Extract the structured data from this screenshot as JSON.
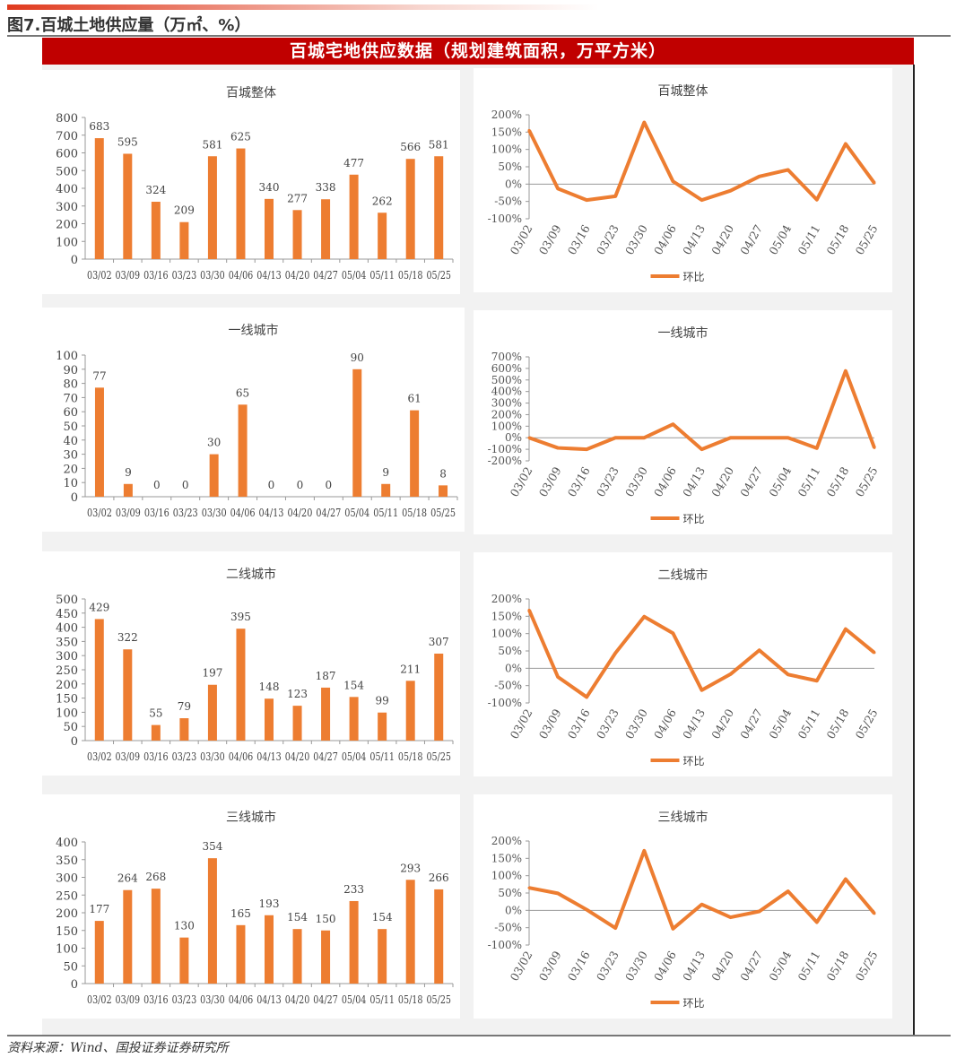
{
  "figure_title": "图7.百城土地供应量（万㎡、%）",
  "banner": "百城宅地供应数据（规划建筑面积，万平方米）",
  "source": "资料来源：Wind、国投证券证券研究所",
  "colors": {
    "series": "#ed7d31",
    "banner": "#c00000"
  },
  "chart_data": [
    {
      "type": "bar",
      "title": "百城整体",
      "categories": [
        "03/02",
        "03/09",
        "03/16",
        "03/23",
        "03/30",
        "04/06",
        "04/13",
        "04/20",
        "04/27",
        "05/04",
        "05/11",
        "05/18",
        "05/25"
      ],
      "values": [
        683,
        595,
        324,
        209,
        581,
        625,
        340,
        277,
        338,
        477,
        262,
        566,
        581
      ],
      "ylim": [
        0,
        800
      ],
      "ystep": 100
    },
    {
      "type": "line",
      "title": "百城整体",
      "legend": "环比",
      "categories": [
        "03/02",
        "03/09",
        "03/16",
        "03/23",
        "03/30",
        "04/06",
        "04/13",
        "04/20",
        "04/27",
        "05/04",
        "05/11",
        "05/18",
        "05/25"
      ],
      "values": [
        155,
        -13,
        -46,
        -35,
        178,
        8,
        -46,
        -19,
        22,
        41,
        -45,
        116,
        3
      ],
      "ylim": [
        -100,
        200
      ],
      "ystep": 50,
      "unit": "%"
    },
    {
      "type": "bar",
      "title": "一线城市",
      "categories": [
        "03/02",
        "03/09",
        "03/16",
        "03/23",
        "03/30",
        "04/06",
        "04/13",
        "04/20",
        "04/27",
        "05/04",
        "05/11",
        "05/18",
        "05/25"
      ],
      "values": [
        77,
        9,
        0,
        0,
        30,
        65,
        0,
        0,
        0,
        90,
        9,
        61,
        8
      ],
      "ylim": [
        0,
        100
      ],
      "ystep": 10
    },
    {
      "type": "line",
      "title": "一线城市",
      "legend": "环比",
      "categories": [
        "03/02",
        "03/09",
        "03/16",
        "03/23",
        "03/30",
        "04/06",
        "04/13",
        "04/20",
        "04/27",
        "05/04",
        "05/11",
        "05/18",
        "05/25"
      ],
      "values": [
        0,
        -88,
        -100,
        0,
        0,
        117,
        -100,
        0,
        0,
        0,
        -90,
        578,
        -87
      ],
      "ylim": [
        -200,
        700
      ],
      "ystep": 100,
      "unit": "%"
    },
    {
      "type": "bar",
      "title": "二线城市",
      "categories": [
        "03/02",
        "03/09",
        "03/16",
        "03/23",
        "03/30",
        "04/06",
        "04/13",
        "04/20",
        "04/27",
        "05/04",
        "05/11",
        "05/18",
        "05/25"
      ],
      "values": [
        429,
        322,
        55,
        79,
        197,
        395,
        148,
        123,
        187,
        154,
        99,
        211,
        307
      ],
      "ylim": [
        0,
        500
      ],
      "ystep": 50
    },
    {
      "type": "line",
      "title": "二线城市",
      "legend": "环比",
      "categories": [
        "03/02",
        "03/09",
        "03/16",
        "03/23",
        "03/30",
        "04/06",
        "04/13",
        "04/20",
        "04/27",
        "05/04",
        "05/11",
        "05/18",
        "05/25"
      ],
      "values": [
        168,
        -25,
        -83,
        44,
        149,
        101,
        -63,
        -17,
        52,
        -18,
        -36,
        113,
        45
      ],
      "ylim": [
        -100,
        200
      ],
      "ystep": 50,
      "unit": "%"
    },
    {
      "type": "bar",
      "title": "三线城市",
      "categories": [
        "03/02",
        "03/09",
        "03/16",
        "03/23",
        "03/30",
        "04/06",
        "04/13",
        "04/20",
        "04/27",
        "05/04",
        "05/11",
        "05/18",
        "05/25"
      ],
      "values": [
        177,
        264,
        268,
        130,
        354,
        165,
        193,
        154,
        150,
        233,
        154,
        293,
        266
      ],
      "ylim": [
        0,
        400
      ],
      "ystep": 50
    },
    {
      "type": "line",
      "title": "三线城市",
      "legend": "环比",
      "categories": [
        "03/02",
        "03/09",
        "03/16",
        "03/23",
        "03/30",
        "04/06",
        "04/13",
        "04/20",
        "04/27",
        "05/04",
        "05/11",
        "05/18",
        "05/25"
      ],
      "values": [
        65,
        49,
        2,
        -51,
        172,
        -53,
        17,
        -20,
        -3,
        55,
        -34,
        90,
        -9
      ],
      "ylim": [
        -100,
        200
      ],
      "ystep": 50,
      "unit": "%"
    }
  ]
}
